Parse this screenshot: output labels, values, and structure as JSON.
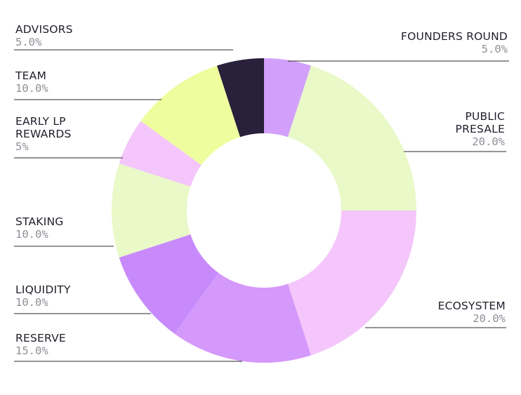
{
  "chart_data": {
    "type": "pie",
    "donut": true,
    "title": "",
    "slices": [
      {
        "name": "FOUNDERS ROUND",
        "name_lines": [
          "FOUNDERS ROUND"
        ],
        "pct_label": "5.0%",
        "value": 5,
        "color": "#d2a0fb",
        "side": "right"
      },
      {
        "name": "PUBLIC PRESALE",
        "name_lines": [
          "PUBLIC",
          "PRESALE"
        ],
        "pct_label": "20.0%",
        "value": 20,
        "color": "#e9f9c8",
        "side": "right"
      },
      {
        "name": "ECOSYSTEM",
        "name_lines": [
          "ECOSYSTEM"
        ],
        "pct_label": "20.0%",
        "value": 20,
        "color": "#f4c6fb",
        "side": "right"
      },
      {
        "name": "RESERVE",
        "name_lines": [
          "RESERVE"
        ],
        "pct_label": "15.0%",
        "value": 15,
        "color": "#d598fb",
        "side": "left"
      },
      {
        "name": "LIQUIDITY",
        "name_lines": [
          "LIQUIDITY"
        ],
        "pct_label": "10.0%",
        "value": 10,
        "color": "#c88afb",
        "side": "left"
      },
      {
        "name": "STAKING",
        "name_lines": [
          "STAKING"
        ],
        "pct_label": "10.0%",
        "value": 10,
        "color": "#e9f9c8",
        "side": "left"
      },
      {
        "name": "EARLY LP REWARDS",
        "name_lines": [
          "EARLY LP",
          "REWARDS"
        ],
        "pct_label": "5%",
        "value": 5,
        "color": "#f4c6fb",
        "side": "left"
      },
      {
        "name": "TEAM",
        "name_lines": [
          "TEAM"
        ],
        "pct_label": "10.0%",
        "value": 10,
        "color": "#eefd9e",
        "side": "left"
      },
      {
        "name": "ADVISORS",
        "name_lines": [
          "ADVISORS"
        ],
        "pct_label": "5.0%",
        "value": 5,
        "color": "#29213b",
        "side": "left"
      }
    ]
  }
}
